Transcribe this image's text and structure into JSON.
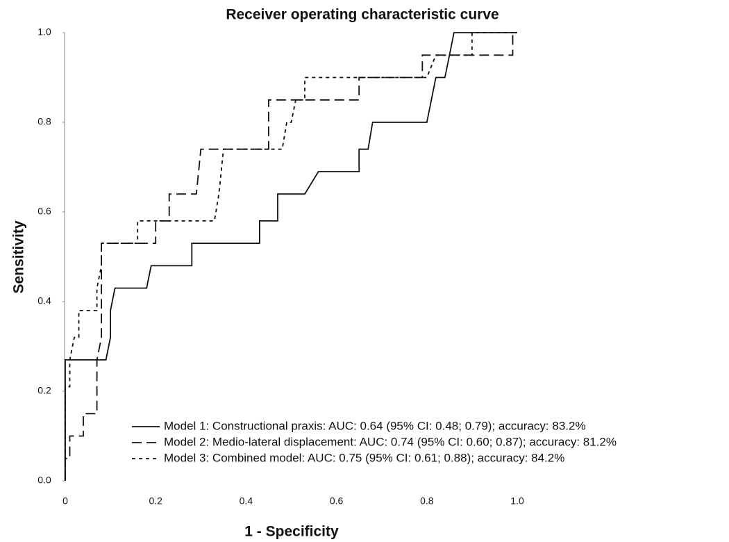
{
  "chart_data": {
    "type": "line",
    "title": "Receiver operating characteristic curve",
    "x_label": "1 - Specificity",
    "y_label": "Sensitivity",
    "xlim": [
      0,
      1
    ],
    "ylim": [
      0,
      1
    ],
    "xticks": [
      0,
      0.2,
      0.4,
      0.6,
      0.8,
      {
        "value": 1,
        "label": "1.0"
      }
    ],
    "yticks": [
      {
        "value": 0,
        "label": "0.0"
      },
      0.2,
      0.4,
      0.6,
      0.8,
      {
        "value": 1,
        "label": "1.0"
      }
    ],
    "grid": false,
    "legend": "lower right",
    "series": [
      {
        "name": "Model 1: Constructional praxis: AUC: 0.64 (95% CI: 0.48; 0.79); accuracy: 83.2%",
        "color": "#111111",
        "linestyle": "solid",
        "x": [
          0,
          0,
          0.09,
          0.1,
          0.1,
          0.11,
          0.18,
          0.19,
          0.28,
          0.28,
          0.43,
          0.43,
          0.47,
          0.47,
          0.53,
          0.56,
          0.65,
          0.65,
          0.67,
          0.68,
          0.8,
          0.81,
          0.82,
          0.84,
          0.85,
          0.86,
          1.0
        ],
        "values": [
          0,
          0.27,
          0.27,
          0.32,
          0.38,
          0.43,
          0.43,
          0.48,
          0.48,
          0.53,
          0.53,
          0.58,
          0.58,
          0.64,
          0.64,
          0.69,
          0.69,
          0.74,
          0.74,
          0.8,
          0.8,
          0.85,
          0.9,
          0.9,
          0.95,
          1.0,
          1.0
        ]
      },
      {
        "name": "Model 2: Medio-lateral displacement: AUC: 0.74 (95% CI: 0.60; 0.87); accuracy: 81.2%",
        "color": "#111111",
        "linestyle": "dashed",
        "x": [
          0,
          0,
          0.01,
          0.01,
          0.04,
          0.04,
          0.07,
          0.07,
          0.08,
          0.08,
          0.2,
          0.2,
          0.23,
          0.23,
          0.29,
          0.3,
          0.45,
          0.45,
          0.65,
          0.65,
          0.79,
          0.79,
          0.99,
          0.99,
          1.0
        ],
        "values": [
          0,
          0.05,
          0.05,
          0.1,
          0.1,
          0.15,
          0.15,
          0.27,
          0.32,
          0.53,
          0.53,
          0.58,
          0.58,
          0.64,
          0.64,
          0.74,
          0.74,
          0.85,
          0.85,
          0.9,
          0.9,
          0.95,
          0.95,
          1.0,
          1.0
        ]
      },
      {
        "name": "Model 3: Combined model: AUC: 0.75 (95% CI: 0.61; 0.88); accuracy: 84.2%",
        "color": "#111111",
        "linestyle": "dotted",
        "x": [
          0,
          0,
          0.01,
          0.01,
          0.02,
          0.03,
          0.03,
          0.07,
          0.07,
          0.08,
          0.08,
          0.13,
          0.13,
          0.16,
          0.16,
          0.33,
          0.34,
          0.35,
          0.48,
          0.49,
          0.5,
          0.51,
          0.53,
          0.53,
          0.8,
          0.82,
          0.9,
          0.9,
          1.0
        ],
        "values": [
          0,
          0.21,
          0.21,
          0.27,
          0.32,
          0.32,
          0.38,
          0.38,
          0.43,
          0.48,
          0.53,
          0.53,
          0.53,
          0.53,
          0.58,
          0.58,
          0.64,
          0.74,
          0.74,
          0.8,
          0.8,
          0.85,
          0.85,
          0.9,
          0.9,
          0.95,
          0.95,
          1.0,
          1.0
        ]
      }
    ]
  }
}
